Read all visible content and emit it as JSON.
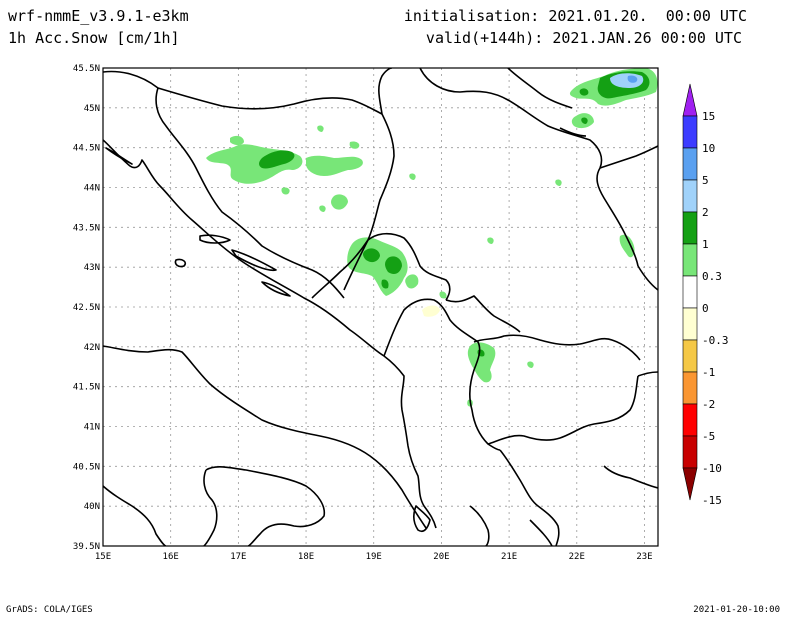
{
  "header": {
    "model": "wrf-nmmE_v3.9.1-e3km",
    "variable": "1h Acc.Snow [cm/1h]",
    "init": "initialisation: 2021.01.20.  00:00 UTC",
    "valid": "valid(+144h): 2021.JAN.26 00:00 UTC"
  },
  "footer": {
    "credit": "GrADS: COLA/IGES",
    "timestamp": "2021-01-20-10:00"
  },
  "map": {
    "lon_labels": [
      "15E",
      "16E",
      "17E",
      "18E",
      "19E",
      "20E",
      "21E",
      "22E",
      "23E"
    ],
    "lat_labels": [
      "45.5N",
      "45N",
      "44.5N",
      "44N",
      "43.5N",
      "43N",
      "42.5N",
      "42N",
      "41.5N",
      "41N",
      "40.5N",
      "40N",
      "39.5N"
    ]
  },
  "legend": {
    "levels": [
      "15",
      "10",
      "5",
      "2",
      "1",
      "0.3",
      "0",
      "-0.3",
      "-1",
      "-2",
      "-5",
      "-10",
      "-15"
    ],
    "colors": [
      "#a020f0",
      "#3c3cff",
      "#5aa0f0",
      "#a0d2fa",
      "#14a014",
      "#78e678",
      "#ffffff",
      "#ffffd2",
      "#f5c846",
      "#fa9632",
      "#ff0000",
      "#c80000",
      "#8b0000"
    ]
  },
  "colors": {
    "snow_light": "#78e678",
    "snow_mid": "#14a014",
    "snow_high": "#a0d2fa",
    "snow_very_high": "#5aa0f0",
    "negative_light": "#ffffd2"
  }
}
